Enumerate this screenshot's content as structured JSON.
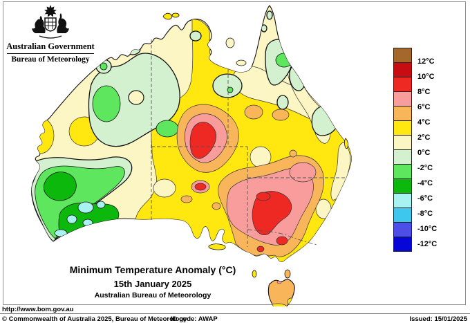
{
  "header": {
    "government": "Australian Government",
    "bureau": "Bureau of Meteorology"
  },
  "title": {
    "line1": "Minimum Temperature Anomaly (°C)",
    "line2": "15th January 2025",
    "line3": "Australian Bureau of Meteorology"
  },
  "legend": {
    "labels": [
      "12°C",
      "10°C",
      "8°C",
      "6°C",
      "4°C",
      "2°C",
      "0°C",
      "-2°C",
      "-4°C",
      "-6°C",
      "-8°C",
      "-10°C",
      "-12°C"
    ],
    "colors": [
      "#A5682C",
      "#C80D12",
      "#EE2823",
      "#F99C9C",
      "#F9B55A",
      "#FFE70F",
      "#FCF5C4",
      "#D3F1CF",
      "#5FE65F",
      "#0DB80D",
      "#A8F3F2",
      "#3EC7EE",
      "#4D4DE8",
      "#0606D9"
    ]
  },
  "palette": {
    "ocean": "#FFFFFF",
    "cream": "#FCF5C4",
    "yellow": "#FFE70F",
    "palegreen": "#D3F1CF",
    "green": "#5FE65F",
    "darkgreen": "#0DB80D",
    "palecyan": "#A8F3F2",
    "cyan": "#3EC7EE",
    "blueviolet": "#4D4DE8",
    "blue": "#0606D9",
    "orange": "#F9B55A",
    "pink": "#F99C9C",
    "red": "#EE2823",
    "darkred": "#C80D12",
    "brown": "#A5682C"
  },
  "footer": {
    "url": "http://www.bom.gov.au",
    "copyright": "© Commonwealth of Australia 2025, Bureau of Meteorology",
    "id_code": "ID code: AWAP",
    "issued": "Issued: 15/01/2025"
  }
}
